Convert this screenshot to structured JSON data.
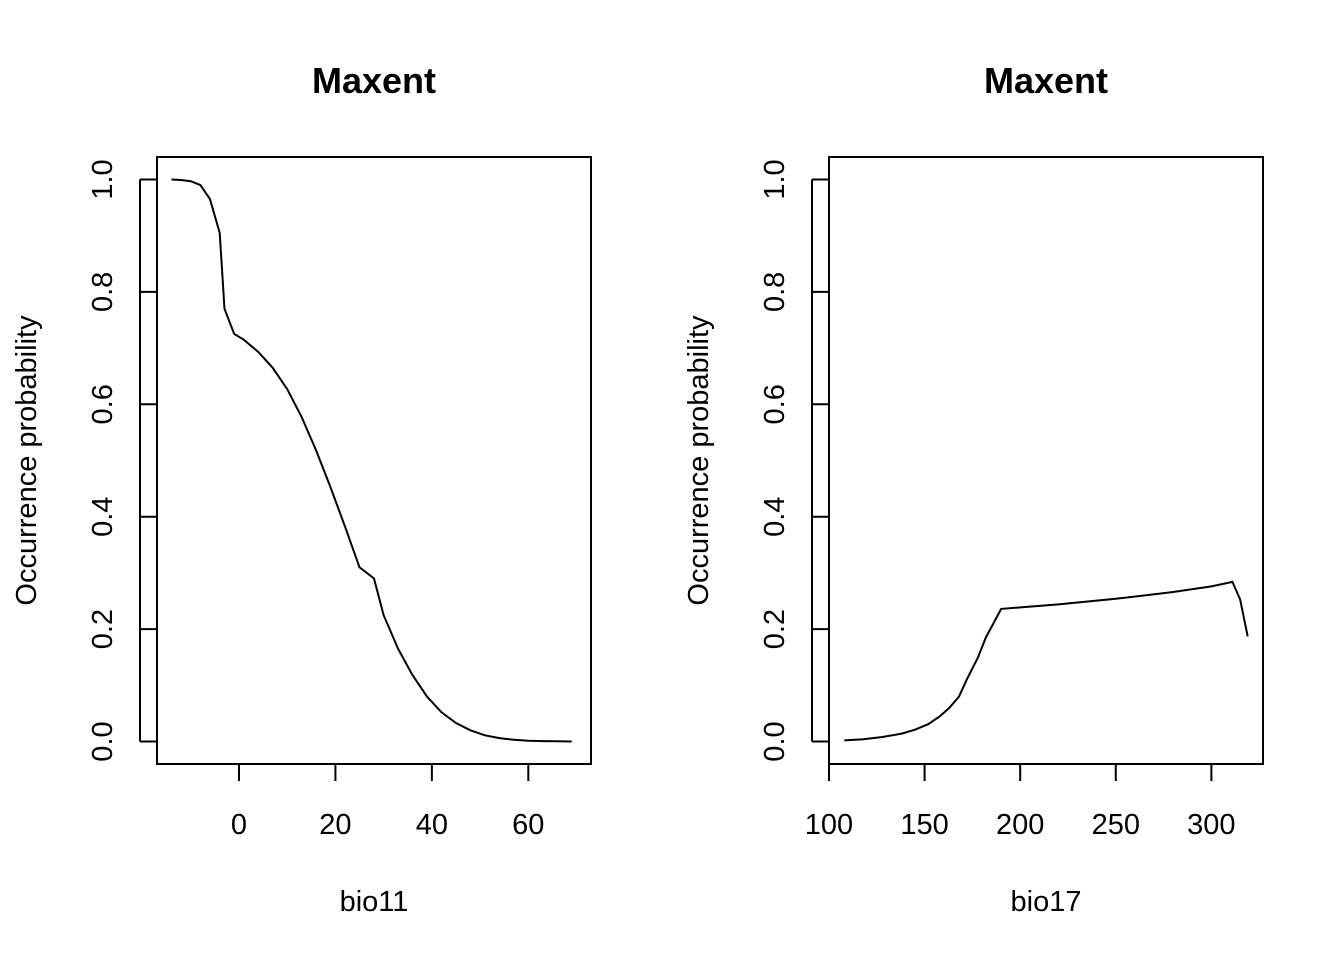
{
  "chart_data": [
    {
      "type": "line",
      "title": "Maxent",
      "xlabel": "bio11",
      "ylabel": "Occurrence probability",
      "xlim": [
        -17,
        73
      ],
      "ylim": [
        -0.04,
        1.04
      ],
      "xticks": [
        0,
        20,
        40,
        60
      ],
      "xtick_labels": [
        "0",
        "20",
        "40",
        "60"
      ],
      "yticks": [
        0.0,
        0.2,
        0.4,
        0.6,
        0.8,
        1.0
      ],
      "ytick_labels": [
        "0.0",
        "0.2",
        "0.4",
        "0.6",
        "0.8",
        "1.0"
      ],
      "x_axis_line": "ticks",
      "series": [
        {
          "x": [
            -14,
            -12,
            -10,
            -8,
            -6,
            -4,
            -3,
            -1,
            1,
            4,
            7,
            10,
            13,
            16,
            19,
            22,
            25,
            28,
            30,
            33,
            36,
            39,
            42,
            45,
            48,
            51,
            54,
            57,
            60,
            63,
            66,
            69
          ],
          "y": [
            1.0,
            0.999,
            0.997,
            0.99,
            0.965,
            0.905,
            0.77,
            0.725,
            0.715,
            0.693,
            0.665,
            0.627,
            0.577,
            0.518,
            0.452,
            0.382,
            0.31,
            0.29,
            0.225,
            0.165,
            0.118,
            0.08,
            0.052,
            0.033,
            0.02,
            0.011,
            0.006,
            0.003,
            0.0015,
            0.0008,
            0.0003,
            0.0001
          ]
        }
      ]
    },
    {
      "type": "line",
      "title": "Maxent",
      "xlabel": "bio17",
      "ylabel": "Occurrence probability",
      "xlim": [
        100,
        327
      ],
      "ylim": [
        -0.04,
        1.04
      ],
      "xticks": [
        100,
        150,
        200,
        250,
        300
      ],
      "xtick_labels": [
        "100",
        "150",
        "200",
        "250",
        "300"
      ],
      "yticks": [
        0.0,
        0.2,
        0.4,
        0.6,
        0.8,
        1.0
      ],
      "ytick_labels": [
        "0.0",
        "0.2",
        "0.4",
        "0.6",
        "0.8",
        "1.0"
      ],
      "x_axis_line": "axis",
      "series": [
        {
          "x": [
            108,
            118,
            128,
            138,
            145,
            152,
            158,
            163,
            168,
            172,
            178,
            182,
            186,
            190,
            220,
            250,
            280,
            300,
            311,
            315,
            319
          ],
          "y": [
            0.002,
            0.004,
            0.008,
            0.014,
            0.021,
            0.031,
            0.045,
            0.06,
            0.08,
            0.11,
            0.15,
            0.185,
            0.21,
            0.236,
            0.244,
            0.254,
            0.266,
            0.276,
            0.284,
            0.253,
            0.187
          ]
        }
      ]
    }
  ]
}
